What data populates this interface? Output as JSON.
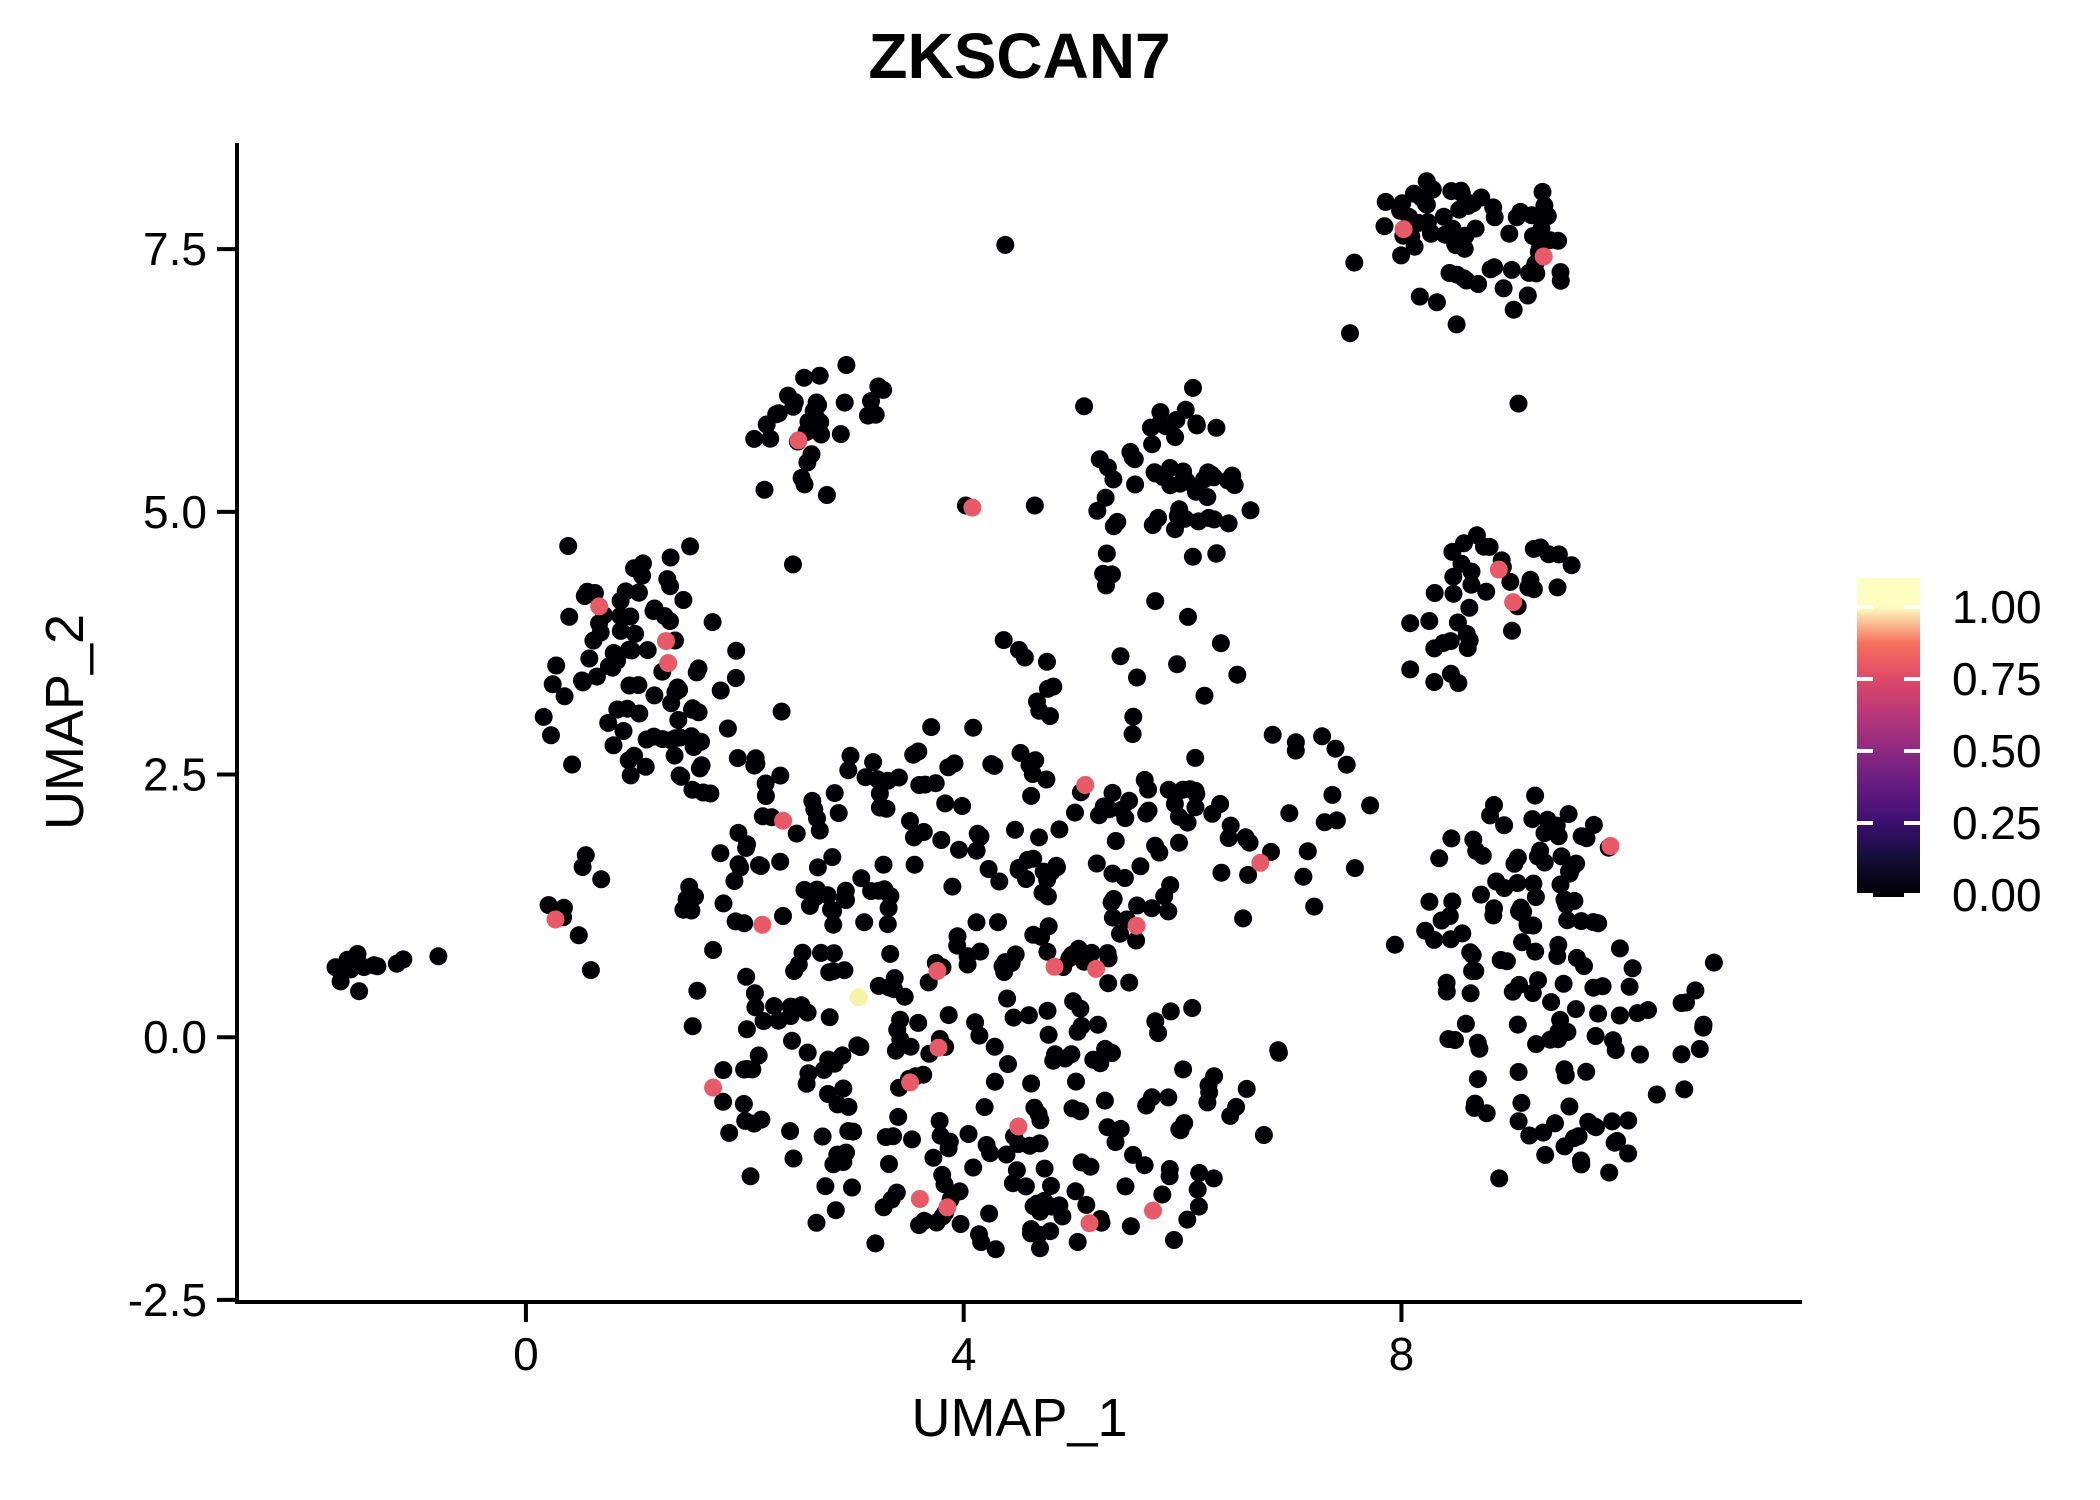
{
  "title": "ZKSCAN7",
  "axes": {
    "x_label": "UMAP_1",
    "y_label": "UMAP_2",
    "x_ticks": [
      {
        "value": 0,
        "label": "0"
      },
      {
        "value": 4,
        "label": "4"
      },
      {
        "value": 8,
        "label": "8"
      }
    ],
    "y_ticks": [
      {
        "value": 7.5,
        "label": "7.5"
      },
      {
        "value": 5.0,
        "label": "5.0"
      },
      {
        "value": 2.5,
        "label": "2.5"
      },
      {
        "value": 0.0,
        "label": "0.0"
      },
      {
        "value": -2.5,
        "label": "-2.5"
      }
    ]
  },
  "legend": {
    "ticks": [
      {
        "value": 1.0,
        "label": "1.00"
      },
      {
        "value": 0.75,
        "label": "0.75"
      },
      {
        "value": 0.5,
        "label": "0.50"
      },
      {
        "value": 0.25,
        "label": "0.25"
      },
      {
        "value": 0.0,
        "label": "0.00"
      }
    ],
    "colormap": "magma",
    "gradient": [
      {
        "value": 0.0,
        "color": "#000004"
      },
      {
        "value": 0.125,
        "color": "#140E36"
      },
      {
        "value": 0.25,
        "color": "#3B0F70"
      },
      {
        "value": 0.375,
        "color": "#641A80"
      },
      {
        "value": 0.5,
        "color": "#8C2981"
      },
      {
        "value": 0.625,
        "color": "#B73779"
      },
      {
        "value": 0.75,
        "color": "#DE4968"
      },
      {
        "value": 0.875,
        "color": "#F7705C"
      },
      {
        "value": 1.0,
        "color": "#FCFDBF"
      }
    ]
  },
  "chart_data": {
    "type": "scatter",
    "title": "ZKSCAN7",
    "xlabel": "UMAP_1",
    "ylabel": "UMAP_2",
    "xlim": [
      -2.64,
      11.66
    ],
    "ylim": [
      -2.52,
      8.51
    ],
    "x_tick_values": [
      0,
      4,
      8
    ],
    "y_tick_values": [
      7.5,
      5.0,
      2.5,
      0.0,
      -2.5
    ],
    "grid": false,
    "legend_position": "right",
    "point_radius_px": 9,
    "colors": {
      "zero_expression": "#000004",
      "mid_expression": "#E85A67",
      "high_expression": "#F8F2A6"
    },
    "expressing_cells": {
      "color": "#E85A67",
      "value_estimate": 0.75,
      "points": [
        [
          8.02,
          7.69
        ],
        [
          9.3,
          7.43
        ],
        [
          2.49,
          5.68
        ],
        [
          4.08,
          5.04
        ],
        [
          8.89,
          4.45
        ],
        [
          9.02,
          4.14
        ],
        [
          0.67,
          4.1
        ],
        [
          1.28,
          3.77
        ],
        [
          1.3,
          3.56
        ],
        [
          5.11,
          2.4
        ],
        [
          2.35,
          2.06
        ],
        [
          9.91,
          1.82
        ],
        [
          6.71,
          1.66
        ],
        [
          0.27,
          1.12
        ],
        [
          2.16,
          1.07
        ],
        [
          5.58,
          1.06
        ],
        [
          3.76,
          0.63
        ],
        [
          4.83,
          0.67
        ],
        [
          5.21,
          0.65
        ],
        [
          3.77,
          -0.1
        ],
        [
          3.51,
          -0.43
        ],
        [
          1.71,
          -0.48
        ],
        [
          4.5,
          -0.85
        ],
        [
          3.6,
          -1.54
        ],
        [
          3.85,
          -1.62
        ],
        [
          5.15,
          -1.77
        ],
        [
          5.73,
          -1.65
        ]
      ]
    },
    "high_expressing_cell": {
      "color": "#F8F2A6",
      "value_estimate": 1.0,
      "points": [
        [
          3.04,
          0.38
        ]
      ]
    },
    "background_cells_value": 0.0,
    "background_clusters": [
      {
        "name": "top-right-a",
        "cx": 8.15,
        "cy": 7.85,
        "sdx": 0.28,
        "sdy": 0.22,
        "n": 22
      },
      {
        "name": "top-right-b",
        "cx": 8.75,
        "cy": 7.72,
        "sdx": 0.33,
        "sdy": 0.26,
        "n": 30
      },
      {
        "name": "top-right-c",
        "cx": 9.25,
        "cy": 7.45,
        "sdx": 0.22,
        "sdy": 0.22,
        "n": 14
      },
      {
        "name": "top-right-low",
        "cx": 8.5,
        "cy": 7.05,
        "sdx": 0.3,
        "sdy": 0.14,
        "n": 6
      },
      {
        "name": "top-mid-a",
        "cx": 2.75,
        "cy": 5.95,
        "sdx": 0.3,
        "sdy": 0.22,
        "n": 17
      },
      {
        "name": "top-mid-b",
        "cx": 2.45,
        "cy": 5.55,
        "sdx": 0.22,
        "sdy": 0.24,
        "n": 9
      },
      {
        "name": "top-mid-c",
        "cx": 3.2,
        "cy": 5.98,
        "sdx": 0.18,
        "sdy": 0.18,
        "n": 5
      },
      {
        "name": "upper-center-a",
        "cx": 5.75,
        "cy": 5.55,
        "sdx": 0.3,
        "sdy": 0.3,
        "n": 20
      },
      {
        "name": "upper-center-b",
        "cx": 6.2,
        "cy": 5.15,
        "sdx": 0.3,
        "sdy": 0.33,
        "n": 20
      },
      {
        "name": "upper-center-c",
        "cx": 5.5,
        "cy": 4.9,
        "sdx": 0.25,
        "sdy": 0.28,
        "n": 12
      },
      {
        "name": "upper-center-top",
        "cx": 5.9,
        "cy": 6.0,
        "sdx": 0.2,
        "sdy": 0.12,
        "n": 6
      },
      {
        "name": "right-a",
        "cx": 8.85,
        "cy": 4.45,
        "sdx": 0.3,
        "sdy": 0.24,
        "n": 16
      },
      {
        "name": "right-b",
        "cx": 8.55,
        "cy": 4.0,
        "sdx": 0.27,
        "sdy": 0.28,
        "n": 12
      },
      {
        "name": "right-c",
        "cx": 9.25,
        "cy": 4.35,
        "sdx": 0.2,
        "sdy": 0.2,
        "n": 6
      },
      {
        "name": "left-a",
        "cx": 1.0,
        "cy": 4.25,
        "sdx": 0.3,
        "sdy": 0.25,
        "n": 22
      },
      {
        "name": "left-b",
        "cx": 0.8,
        "cy": 3.6,
        "sdx": 0.3,
        "sdy": 0.33,
        "n": 20
      },
      {
        "name": "left-c",
        "cx": 1.45,
        "cy": 3.4,
        "sdx": 0.3,
        "sdy": 0.33,
        "n": 20
      },
      {
        "name": "left-d",
        "cx": 1.1,
        "cy": 2.85,
        "sdx": 0.33,
        "sdy": 0.28,
        "n": 16
      },
      {
        "name": "left-e",
        "cx": 1.6,
        "cy": 2.5,
        "sdx": 0.28,
        "sdy": 0.2,
        "n": 8
      },
      {
        "name": "left-edge",
        "cx": 0.45,
        "cy": 3.1,
        "sdx": 0.15,
        "sdy": 0.3,
        "n": 6
      },
      {
        "name": "center-1",
        "cx": 2.3,
        "cy": 1.9,
        "sdx": 0.45,
        "sdy": 0.4,
        "n": 25
      },
      {
        "name": "center-2",
        "cx": 3.3,
        "cy": 2.2,
        "sdx": 0.5,
        "sdy": 0.38,
        "n": 20
      },
      {
        "name": "center-3",
        "cx": 4.3,
        "cy": 2.3,
        "sdx": 0.5,
        "sdy": 0.35,
        "n": 20
      },
      {
        "name": "center-4",
        "cx": 5.3,
        "cy": 2.0,
        "sdx": 0.5,
        "sdy": 0.42,
        "n": 25
      },
      {
        "name": "center-5",
        "cx": 6.3,
        "cy": 1.9,
        "sdx": 0.45,
        "sdy": 0.5,
        "n": 28
      },
      {
        "name": "center-6",
        "cx": 3.0,
        "cy": 1.2,
        "sdx": 0.5,
        "sdy": 0.4,
        "n": 25
      },
      {
        "name": "center-7",
        "cx": 4.2,
        "cy": 1.1,
        "sdx": 0.5,
        "sdy": 0.42,
        "n": 30
      },
      {
        "name": "center-8",
        "cx": 5.4,
        "cy": 0.9,
        "sdx": 0.5,
        "sdy": 0.42,
        "n": 26
      },
      {
        "name": "center-9",
        "cx": 2.4,
        "cy": 0.3,
        "sdx": 0.5,
        "sdy": 0.42,
        "n": 26
      },
      {
        "name": "center-10",
        "cx": 3.6,
        "cy": 0.0,
        "sdx": 0.55,
        "sdy": 0.48,
        "n": 30
      },
      {
        "name": "center-11",
        "cx": 4.9,
        "cy": -0.2,
        "sdx": 0.5,
        "sdy": 0.48,
        "n": 26
      },
      {
        "name": "center-12",
        "cx": 2.5,
        "cy": -0.9,
        "sdx": 0.45,
        "sdy": 0.38,
        "n": 22
      },
      {
        "name": "center-13",
        "cx": 3.5,
        "cy": -1.2,
        "sdx": 0.5,
        "sdy": 0.38,
        "n": 26
      },
      {
        "name": "center-14",
        "cx": 4.7,
        "cy": -1.3,
        "sdx": 0.5,
        "sdy": 0.38,
        "n": 24
      },
      {
        "name": "center-15",
        "cx": 5.7,
        "cy": -1.0,
        "sdx": 0.4,
        "sdy": 0.45,
        "n": 20
      },
      {
        "name": "center-bottom",
        "cx": 4.3,
        "cy": -1.75,
        "sdx": 0.6,
        "sdy": 0.16,
        "n": 16
      },
      {
        "name": "center-left-bridge",
        "cx": 0.55,
        "cy": 1.1,
        "sdx": 0.22,
        "sdy": 0.28,
        "n": 8
      },
      {
        "name": "center-upleft",
        "cx": 1.7,
        "cy": 1.35,
        "sdx": 0.3,
        "sdy": 0.28,
        "n": 10
      },
      {
        "name": "center-right-tail",
        "cx": 6.3,
        "cy": -0.4,
        "sdx": 0.35,
        "sdy": 0.42,
        "n": 13
      },
      {
        "name": "center-top-bridge",
        "cx": 4.9,
        "cy": 3.3,
        "sdx": 0.5,
        "sdy": 0.32,
        "n": 12
      },
      {
        "name": "center-e-bridge",
        "cx": 2.0,
        "cy": 2.6,
        "sdx": 0.28,
        "sdy": 0.22,
        "n": 6
      },
      {
        "name": "far-left-clump",
        "cx": -1.62,
        "cy": 0.62,
        "sdx": 0.13,
        "sdy": 0.12,
        "n": 14
      },
      {
        "name": "right-lower-top1",
        "cx": 9.0,
        "cy": 1.7,
        "sdx": 0.35,
        "sdy": 0.28,
        "n": 20
      },
      {
        "name": "right-lower-top2",
        "cx": 9.55,
        "cy": 1.9,
        "sdx": 0.3,
        "sdy": 0.24,
        "n": 14
      },
      {
        "name": "right-lower-1",
        "cx": 9.3,
        "cy": 1.1,
        "sdx": 0.45,
        "sdy": 0.33,
        "n": 22
      },
      {
        "name": "right-lower-2",
        "cx": 9.0,
        "cy": 0.4,
        "sdx": 0.4,
        "sdy": 0.4,
        "n": 22
      },
      {
        "name": "right-lower-3",
        "cx": 9.8,
        "cy": 0.3,
        "sdx": 0.45,
        "sdy": 0.4,
        "n": 20
      },
      {
        "name": "right-lower-4",
        "cx": 9.3,
        "cy": -0.4,
        "sdx": 0.45,
        "sdy": 0.33,
        "n": 20
      },
      {
        "name": "right-lower-5",
        "cx": 9.6,
        "cy": -1.0,
        "sdx": 0.4,
        "sdy": 0.28,
        "n": 14
      },
      {
        "name": "right-lower-ledge",
        "cx": 8.35,
        "cy": 1.2,
        "sdx": 0.18,
        "sdy": 0.33,
        "n": 8
      },
      {
        "name": "right-lower-redge",
        "cx": 10.45,
        "cy": 0.1,
        "sdx": 0.24,
        "sdy": 0.4,
        "n": 10
      },
      {
        "name": "center-right-bridge",
        "cx": 7.3,
        "cy": 2.3,
        "sdx": 0.24,
        "sdy": 0.33,
        "n": 10
      }
    ],
    "background_singles": [
      [
        7.53,
        6.7
      ],
      [
        9.07,
        6.03
      ],
      [
        4.38,
        7.54
      ],
      [
        4.02,
        5.06
      ],
      [
        4.65,
        5.06
      ],
      [
        2.18,
        5.21
      ],
      [
        2.44,
        4.5
      ],
      [
        2.75,
        5.16
      ],
      [
        -1.18,
        0.7
      ],
      [
        -1.12,
        0.74
      ],
      [
        -0.8,
        0.77
      ],
      [
        5.3,
        4.3
      ],
      [
        5.75,
        4.15
      ],
      [
        6.05,
        4.0
      ],
      [
        6.35,
        3.75
      ],
      [
        5.95,
        3.55
      ],
      [
        6.5,
        3.45
      ],
      [
        6.2,
        3.25
      ],
      [
        5.55,
        3.05
      ],
      [
        8.08,
        3.94
      ],
      [
        8.3,
        3.7
      ],
      [
        8.08,
        3.5
      ],
      [
        8.45,
        3.77
      ],
      [
        8.3,
        3.38
      ],
      [
        8.52,
        3.37
      ]
    ]
  }
}
